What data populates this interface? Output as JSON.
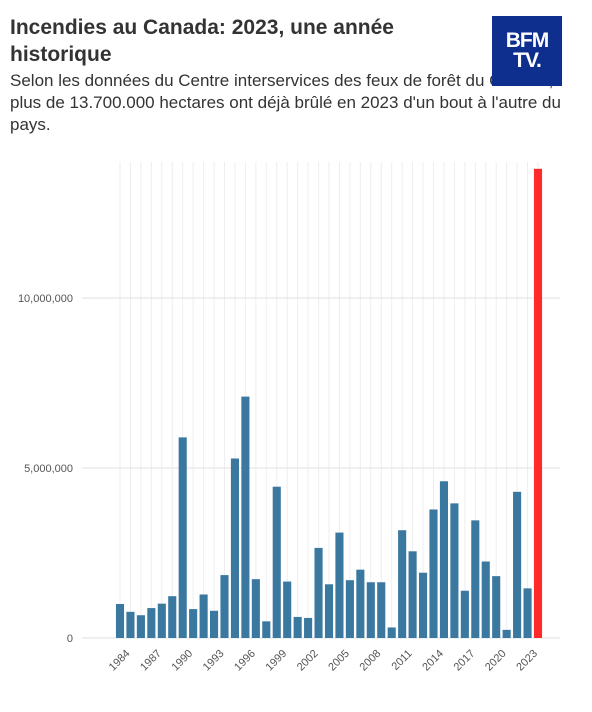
{
  "header": {
    "title": "Incendies au Canada: 2023, une année historique",
    "subtitle": "Selon les données du Centre interservices des feux de forêt du Canada, plus de 13.700.000 hectares ont déjà brûlé en 2023 d'un bout à l'autre du pays."
  },
  "logo": {
    "line1": "BFM",
    "line2": "TV.",
    "background": "#0f2f8f"
  },
  "chart_data": {
    "type": "bar",
    "title": "",
    "xlabel": "",
    "ylabel": "",
    "ylim": [
      0,
      14000000
    ],
    "y_ticks": [
      0,
      5000000,
      10000000
    ],
    "y_tick_labels": [
      "0",
      "5,000,000",
      "10,000,000"
    ],
    "x_tick_labels": [
      "1984",
      "1987",
      "1990",
      "1993",
      "1996",
      "1999",
      "2002",
      "2005",
      "2008",
      "2011",
      "2014",
      "2017",
      "2020",
      "2023"
    ],
    "grid": true,
    "colors": {
      "default": "#3a78a0",
      "highlight": "#ff2a2a",
      "highlight_category": "2023"
    },
    "categories": [
      "1983",
      "1984",
      "1985",
      "1986",
      "1987",
      "1988",
      "1989",
      "1990",
      "1991",
      "1992",
      "1993",
      "1994",
      "1995",
      "1996",
      "1997",
      "1998",
      "1999",
      "2000",
      "2001",
      "2002",
      "2003",
      "2004",
      "2005",
      "2006",
      "2007",
      "2008",
      "2009",
      "2010",
      "2011",
      "2012",
      "2013",
      "2014",
      "2015",
      "2016",
      "2017",
      "2018",
      "2019",
      "2020",
      "2021",
      "2022",
      "2023"
    ],
    "values": [
      1000000,
      770000,
      670000,
      880000,
      1010000,
      1230000,
      5900000,
      850000,
      1280000,
      800000,
      1850000,
      5280000,
      7100000,
      1730000,
      490000,
      4450000,
      1660000,
      620000,
      590000,
      2650000,
      1580000,
      3100000,
      1700000,
      2010000,
      1640000,
      1640000,
      310000,
      3170000,
      2550000,
      1920000,
      3780000,
      4610000,
      3960000,
      1390000,
      3460000,
      2250000,
      1820000,
      240000,
      4300000,
      1460000,
      13800000
    ]
  }
}
